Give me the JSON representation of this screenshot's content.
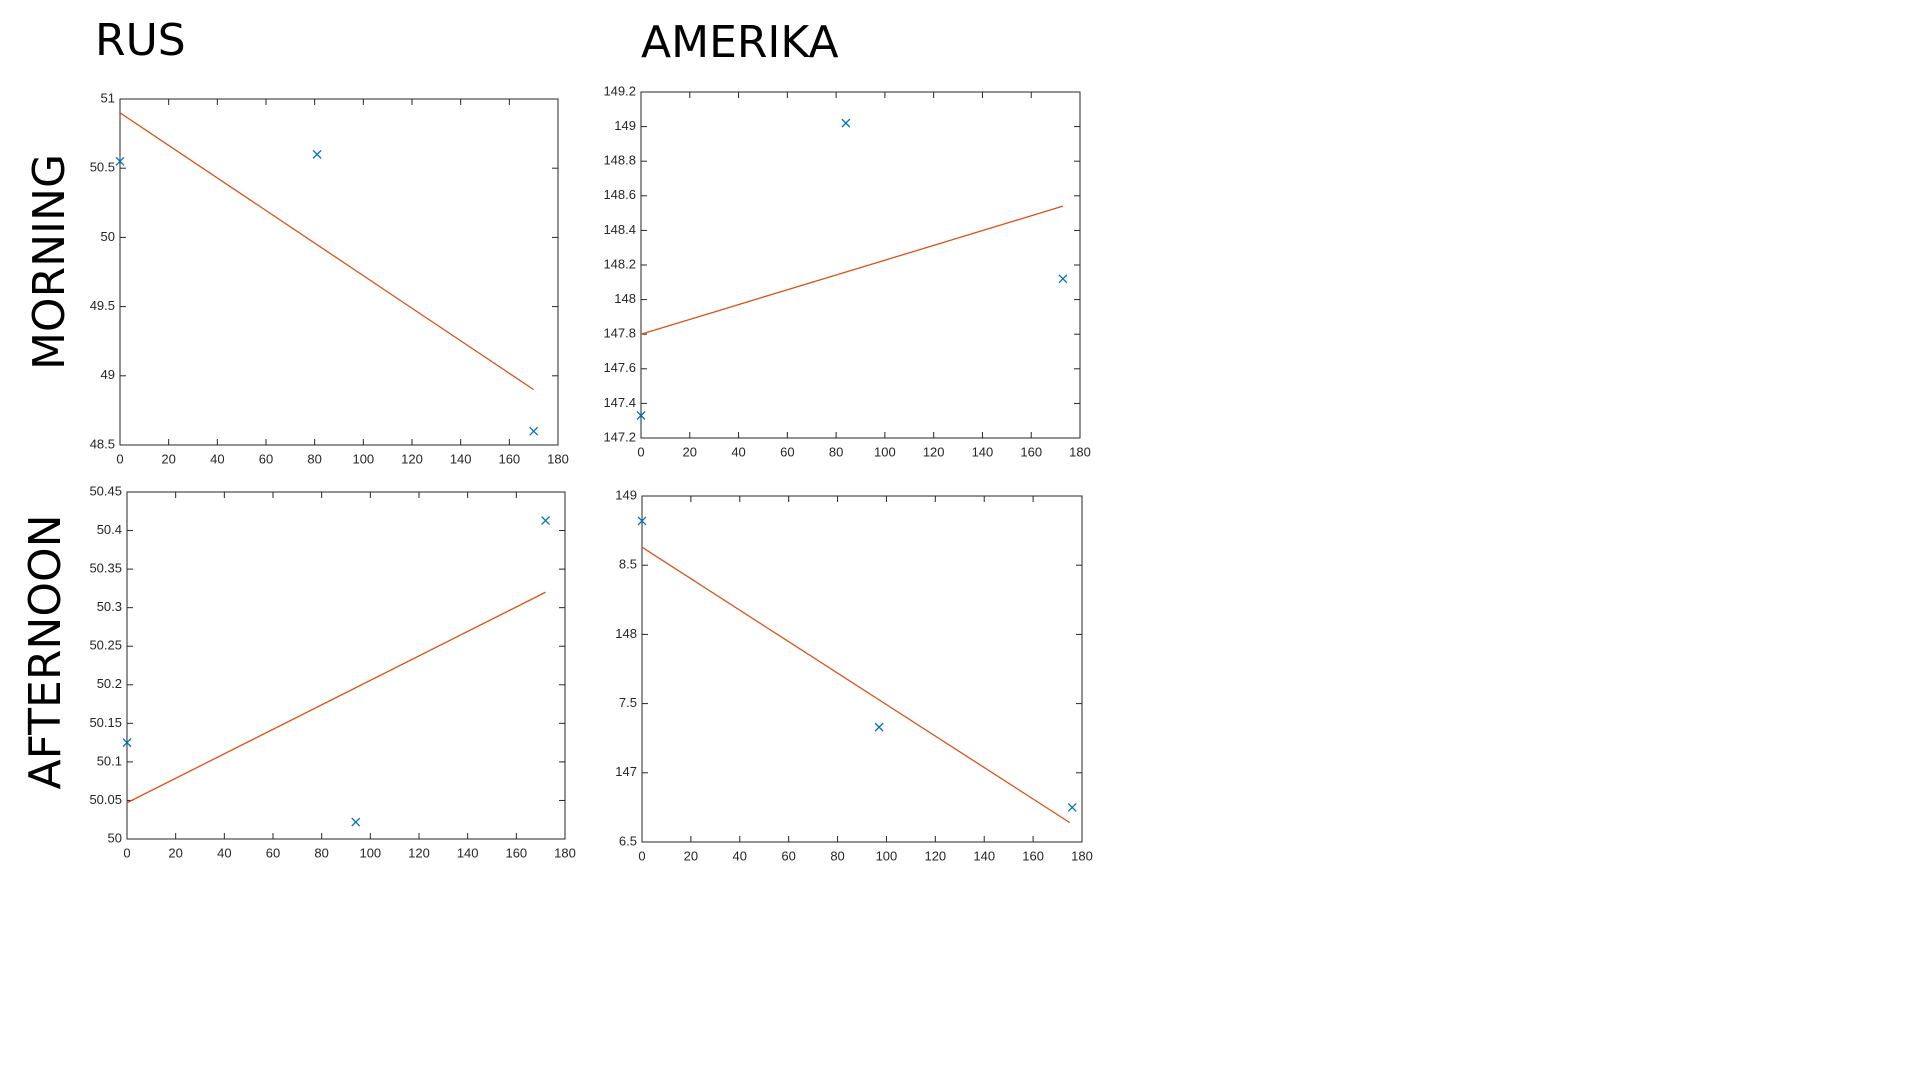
{
  "columns": [
    "RUS",
    "AMERIKA"
  ],
  "rows": [
    "MORNING",
    "AFTERNOON"
  ],
  "chart_data": [
    {
      "type": "scatter",
      "xlim": [
        0,
        180
      ],
      "xticks": [
        0,
        20,
        40,
        60,
        80,
        100,
        120,
        140,
        160,
        180
      ],
      "ylim": [
        48.5,
        51
      ],
      "yticks": [
        48.5,
        49,
        49.5,
        50,
        50.5,
        51
      ],
      "series": [
        {
          "type": "scatter",
          "marker": "x",
          "color": "#0072bd",
          "x": [
            0,
            81,
            170
          ],
          "values": [
            50.55,
            50.6,
            48.6
          ]
        },
        {
          "type": "line",
          "color": "#d95319",
          "x": [
            0,
            170
          ],
          "values": [
            50.9,
            48.9
          ]
        }
      ]
    },
    {
      "type": "scatter",
      "xlim": [
        0,
        180
      ],
      "xticks": [
        0,
        20,
        40,
        60,
        80,
        100,
        120,
        140,
        160,
        180
      ],
      "ylim": [
        147.2,
        149.2
      ],
      "yticks": [
        147.2,
        147.4,
        147.6,
        147.8,
        148,
        148.2,
        148.4,
        148.6,
        148.8,
        149,
        149.2
      ],
      "series": [
        {
          "type": "scatter",
          "marker": "x",
          "color": "#0072bd",
          "x": [
            0,
            84,
            173
          ],
          "values": [
            147.33,
            149.02,
            148.12
          ]
        },
        {
          "type": "line",
          "color": "#d95319",
          "x": [
            0,
            173
          ],
          "values": [
            147.8,
            148.54
          ]
        }
      ]
    },
    {
      "type": "scatter",
      "xlim": [
        0,
        180
      ],
      "xticks": [
        0,
        20,
        40,
        60,
        80,
        100,
        120,
        140,
        160,
        180
      ],
      "ylim": [
        50,
        50.45
      ],
      "yticks": [
        50,
        50.05,
        50.1,
        50.15,
        50.2,
        50.25,
        50.3,
        50.35,
        50.4,
        50.45
      ],
      "series": [
        {
          "type": "scatter",
          "marker": "x",
          "color": "#0072bd",
          "x": [
            0,
            94,
            172
          ],
          "values": [
            50.125,
            50.022,
            50.413
          ]
        },
        {
          "type": "line",
          "color": "#d95319",
          "x": [
            0,
            172
          ],
          "values": [
            50.047,
            50.32
          ]
        }
      ]
    },
    {
      "type": "scatter",
      "xlim": [
        0,
        180
      ],
      "xticks": [
        0,
        20,
        40,
        60,
        80,
        100,
        120,
        140,
        160,
        180
      ],
      "ylim": [
        146.5,
        149
      ],
      "yticks": [
        {
          "value": 146.5,
          "label": "6.5"
        },
        147,
        {
          "value": 147.5,
          "label": "7.5"
        },
        148,
        {
          "value": 148.5,
          "label": "8.5"
        },
        149
      ],
      "series": [
        {
          "type": "scatter",
          "marker": "x",
          "color": "#0072bd",
          "x": [
            0,
            97,
            176
          ],
          "values": [
            148.82,
            147.33,
            146.75
          ]
        },
        {
          "type": "line",
          "color": "#d95319",
          "x": [
            0,
            175
          ],
          "values": [
            148.63,
            146.64
          ]
        }
      ]
    }
  ]
}
